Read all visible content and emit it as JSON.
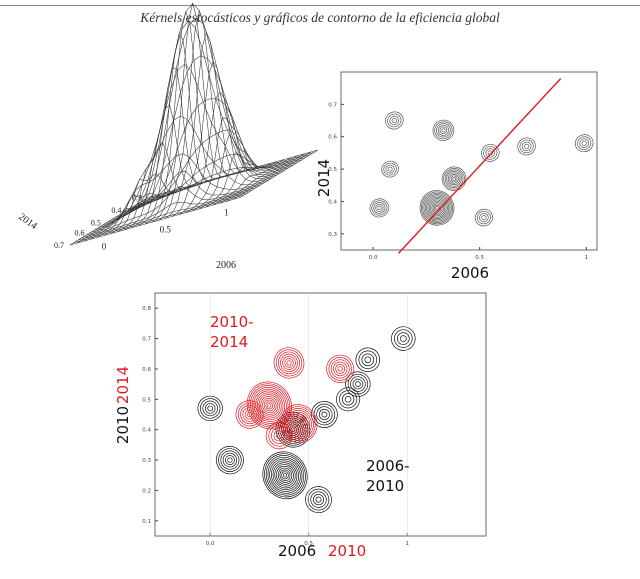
{
  "page": {
    "title": "Kérnels estocásticos y gráficos de contorno de la eficiencia global"
  },
  "chart_data": [
    {
      "id": "surface-3d",
      "type": "surface",
      "x_axis": {
        "label": "2006",
        "ticks": [
          "0",
          "0.5",
          "1"
        ]
      },
      "y_axis": {
        "label": "2014",
        "ticks": [
          "0.7",
          "0.6",
          "0.5",
          "0.4",
          "0.3"
        ]
      }
    },
    {
      "id": "contour-2006-2014",
      "type": "contour",
      "xlabel": "2006",
      "ylabel": "2014",
      "x_ticks": [
        "0.0",
        "0.5",
        "1"
      ],
      "y_ticks": [
        "0.7",
        "0.6",
        "0.5",
        "0.4",
        "0.3"
      ],
      "xlim": [
        -0.15,
        1.05
      ],
      "ylim": [
        0.25,
        0.8
      ],
      "reference_line": {
        "x": [
          0.12,
          0.88
        ],
        "y": [
          0.24,
          0.78
        ],
        "color": "#e0191f"
      },
      "density_peaks": [
        {
          "x": 0.3,
          "y": 0.38,
          "weight": 1.0
        },
        {
          "x": 0.38,
          "y": 0.47,
          "weight": 0.5
        },
        {
          "x": 0.33,
          "y": 0.62,
          "weight": 0.35
        },
        {
          "x": 0.03,
          "y": 0.38,
          "weight": 0.25
        },
        {
          "x": 0.1,
          "y": 0.65,
          "weight": 0.2
        },
        {
          "x": 0.55,
          "y": 0.55,
          "weight": 0.2
        },
        {
          "x": 0.72,
          "y": 0.57,
          "weight": 0.2
        },
        {
          "x": 0.99,
          "y": 0.58,
          "weight": 0.2
        },
        {
          "x": 0.52,
          "y": 0.35,
          "weight": 0.18
        },
        {
          "x": 0.08,
          "y": 0.5,
          "weight": 0.15
        }
      ]
    },
    {
      "id": "contour-overlay",
      "type": "contour",
      "xlabel": [
        "2006",
        "2010"
      ],
      "ylabel": [
        "2010",
        "2014"
      ],
      "x_ticks": [
        "0.0",
        "0.5",
        "1"
      ],
      "y_ticks": [
        "0.8",
        "0.7",
        "0.6",
        "0.5",
        "0.4",
        "0.3",
        "0.2",
        "0.1"
      ],
      "xlim": [
        -0.28,
        1.4
      ],
      "ylim": [
        0.05,
        0.85
      ],
      "series": [
        {
          "name": "2006-2010",
          "color": "#111111",
          "density_peaks": [
            {
              "x": 0.38,
              "y": 0.25,
              "weight": 1.0
            },
            {
              "x": 0.42,
              "y": 0.4,
              "weight": 0.6
            },
            {
              "x": 0.1,
              "y": 0.3,
              "weight": 0.35
            },
            {
              "x": 0.0,
              "y": 0.47,
              "weight": 0.25
            },
            {
              "x": 0.58,
              "y": 0.45,
              "weight": 0.3
            },
            {
              "x": 0.75,
              "y": 0.55,
              "weight": 0.25
            },
            {
              "x": 0.8,
              "y": 0.63,
              "weight": 0.22
            },
            {
              "x": 0.98,
              "y": 0.7,
              "weight": 0.22
            },
            {
              "x": 0.55,
              "y": 0.17,
              "weight": 0.3
            },
            {
              "x": 0.7,
              "y": 0.5,
              "weight": 0.2
            }
          ]
        },
        {
          "name": "2010-2014",
          "color": "#e0191f",
          "density_peaks": [
            {
              "x": 0.3,
              "y": 0.48,
              "weight": 1.0
            },
            {
              "x": 0.45,
              "y": 0.42,
              "weight": 0.7
            },
            {
              "x": 0.4,
              "y": 0.62,
              "weight": 0.45
            },
            {
              "x": 0.2,
              "y": 0.45,
              "weight": 0.35
            },
            {
              "x": 0.66,
              "y": 0.6,
              "weight": 0.35
            },
            {
              "x": 0.35,
              "y": 0.38,
              "weight": 0.3
            }
          ]
        }
      ],
      "annotations": [
        {
          "text": "2010-",
          "color": "#e0191f"
        },
        {
          "text": "2014",
          "color": "#e0191f"
        },
        {
          "text": "2006-",
          "color": "#111111"
        },
        {
          "text": "2010",
          "color": "#111111"
        }
      ]
    }
  ]
}
